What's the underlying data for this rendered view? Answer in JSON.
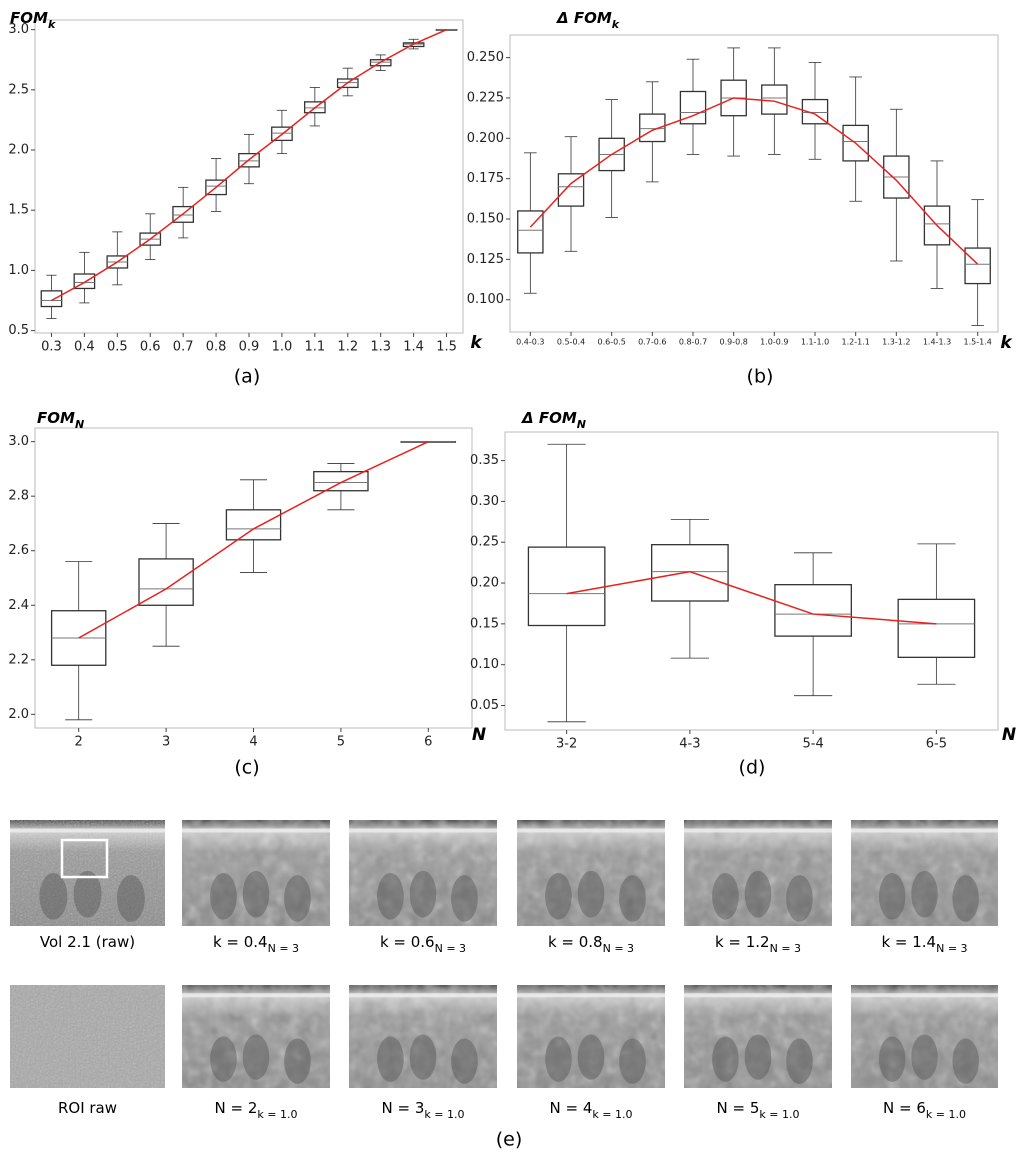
{
  "chart_data": [
    {
      "type": "box",
      "title": "FOM",
      "title_sub": "k",
      "x_label": "k",
      "panel_label": "(a)",
      "categories": [
        "0.3",
        "0.4",
        "0.5",
        "0.6",
        "0.7",
        "0.8",
        "0.9",
        "1.0",
        "1.1",
        "1.2",
        "1.3",
        "1.4",
        "1.5"
      ],
      "low": [
        0.6,
        0.73,
        0.88,
        1.09,
        1.27,
        1.49,
        1.72,
        1.97,
        2.2,
        2.45,
        2.66,
        2.84,
        3.0
      ],
      "q1": [
        0.7,
        0.85,
        1.02,
        1.21,
        1.4,
        1.63,
        1.86,
        2.08,
        2.31,
        2.52,
        2.7,
        2.86,
        3.0
      ],
      "median": [
        0.75,
        0.9,
        1.07,
        1.26,
        1.46,
        1.7,
        1.91,
        2.14,
        2.35,
        2.56,
        2.73,
        2.88,
        3.0
      ],
      "q3": [
        0.83,
        0.97,
        1.12,
        1.31,
        1.53,
        1.75,
        1.97,
        2.19,
        2.4,
        2.59,
        2.75,
        2.89,
        3.0
      ],
      "high": [
        0.96,
        1.15,
        1.32,
        1.47,
        1.69,
        1.93,
        2.13,
        2.33,
        2.52,
        2.68,
        2.79,
        2.92,
        3.0
      ],
      "line": {
        "color": "#e8211e",
        "values": [
          0.75,
          0.9,
          1.07,
          1.26,
          1.47,
          1.69,
          1.92,
          2.13,
          2.35,
          2.56,
          2.73,
          2.88,
          3.0
        ]
      },
      "box_color": "#333333",
      "ylim": [
        0.48,
        3.08
      ],
      "yticks": [
        0.5,
        {
          "value": 1,
          "label": "1.0"
        },
        1.5,
        {
          "value": 2,
          "label": "2.0"
        },
        2.5,
        {
          "value": 3,
          "label": "3.0"
        }
      ],
      "grid": false
    },
    {
      "type": "box",
      "title": "Δ FOM",
      "title_sub": "k",
      "x_label": "k",
      "panel_label": "(b)",
      "categories": [
        "0.4-0.3",
        "0.5-0.4",
        "0.6-0.5",
        "0.7-0.6",
        "0.8-0.7",
        "0.9-0.8",
        "1.0-0.9",
        "1.1-1.0",
        "1.2-1.1",
        "1.3-1.2",
        "1.4-1.3",
        "1.5-1.4"
      ],
      "low": [
        0.104,
        0.13,
        0.151,
        0.173,
        0.19,
        0.189,
        0.19,
        0.187,
        0.161,
        0.124,
        0.107,
        0.084
      ],
      "q1": [
        0.129,
        0.158,
        0.18,
        0.198,
        0.209,
        0.214,
        0.215,
        0.209,
        0.186,
        0.163,
        0.134,
        0.11
      ],
      "median": [
        0.143,
        0.17,
        0.19,
        0.206,
        0.216,
        0.225,
        0.225,
        0.216,
        0.198,
        0.176,
        0.147,
        0.122
      ],
      "q3": [
        0.155,
        0.178,
        0.2,
        0.215,
        0.229,
        0.236,
        0.233,
        0.224,
        0.208,
        0.189,
        0.158,
        0.132
      ],
      "high": [
        0.191,
        0.201,
        0.224,
        0.235,
        0.249,
        0.256,
        0.256,
        0.247,
        0.238,
        0.218,
        0.186,
        0.162
      ],
      "line": {
        "color": "#e8211e",
        "values": [
          0.145,
          0.172,
          0.19,
          0.205,
          0.214,
          0.225,
          0.223,
          0.215,
          0.197,
          0.174,
          0.146,
          0.122
        ]
      },
      "box_color": "#333333",
      "ylim": [
        0.08,
        0.264
      ],
      "yticks": [
        {
          "value": 0.1,
          "label": "0.100"
        },
        0.125,
        {
          "value": 0.15,
          "label": "0.150"
        },
        0.175,
        {
          "value": 0.2,
          "label": "0.200"
        },
        0.225,
        {
          "value": 0.25,
          "label": "0.250"
        }
      ],
      "grid": false
    },
    {
      "type": "box",
      "title": "FOM",
      "title_sub": "N",
      "x_label": "N",
      "panel_label": "(c)",
      "categories": [
        "2",
        "3",
        "4",
        "5",
        "6"
      ],
      "low": [
        1.98,
        2.25,
        2.52,
        2.75,
        3.0
      ],
      "q1": [
        2.18,
        2.4,
        2.64,
        2.82,
        3.0
      ],
      "median": [
        2.28,
        2.46,
        2.68,
        2.85,
        3.0
      ],
      "q3": [
        2.38,
        2.57,
        2.75,
        2.89,
        3.0
      ],
      "high": [
        2.56,
        2.7,
        2.86,
        2.92,
        3.0
      ],
      "line": {
        "color": "#e8211e",
        "values": [
          2.28,
          2.46,
          2.68,
          2.85,
          3.0
        ]
      },
      "box_color": "#333333",
      "ylim": [
        1.95,
        3.05
      ],
      "yticks": [
        {
          "value": 2,
          "label": "2.0"
        },
        2.2,
        2.4,
        2.6,
        2.8,
        {
          "value": 3,
          "label": "3.0"
        }
      ],
      "grid": false
    },
    {
      "type": "box",
      "title": "Δ FOM",
      "title_sub": "N",
      "x_label": "N",
      "panel_label": "(d)",
      "categories": [
        "3-2",
        "4-3",
        "5-4",
        "6-5"
      ],
      "low": [
        0.03,
        0.108,
        0.062,
        0.076
      ],
      "q1": [
        0.148,
        0.178,
        0.135,
        0.109
      ],
      "median": [
        0.187,
        0.214,
        0.162,
        0.15
      ],
      "q3": [
        0.244,
        0.247,
        0.198,
        0.18
      ],
      "high": [
        0.37,
        0.278,
        0.237,
        0.248
      ],
      "line": {
        "color": "#e8211e",
        "values": [
          0.187,
          0.214,
          0.162,
          0.15
        ]
      },
      "box_color": "#333333",
      "ylim": [
        0.02,
        0.385
      ],
      "yticks": [
        0.05,
        {
          "value": 0.1,
          "label": "0.10"
        },
        0.15,
        {
          "value": 0.2,
          "label": "0.20"
        },
        0.25,
        {
          "value": 0.3,
          "label": "0.30"
        },
        0.35
      ],
      "grid": false
    }
  ],
  "panel_e": {
    "label": "(e)",
    "rows": [
      [
        {
          "main": "Vol 2.1 (raw)"
        },
        {
          "main": "k = 0.4",
          "sub": "N = 3"
        },
        {
          "main": "k = 0.6",
          "sub": "N = 3"
        },
        {
          "main": "k = 0.8",
          "sub": "N = 3"
        },
        {
          "main": "k = 1.2",
          "sub": "N = 3"
        },
        {
          "main": "k = 1.4",
          "sub": "N = 3"
        }
      ],
      [
        {
          "main": "ROI raw"
        },
        {
          "main": "N = 2",
          "sub": "k = 1.0"
        },
        {
          "main": "N = 3",
          "sub": "k = 1.0"
        },
        {
          "main": "N = 4",
          "sub": "k = 1.0"
        },
        {
          "main": "N = 5",
          "sub": "k = 1.0"
        },
        {
          "main": "N = 6",
          "sub": "k = 1.0"
        }
      ]
    ]
  }
}
